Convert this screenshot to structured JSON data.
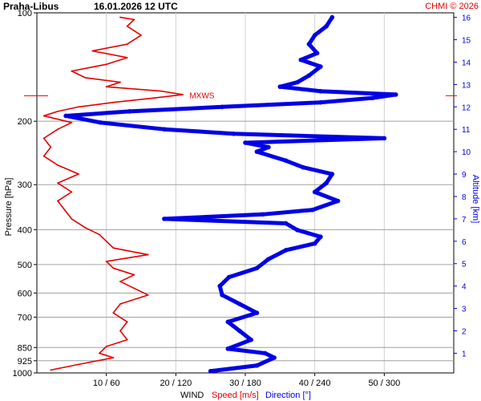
{
  "header": {
    "station": "Praha-Libus",
    "datetime": "16.01.2026 12 UTC",
    "copyright": "CHMI © 2026"
  },
  "colors": {
    "speed": "#e60000",
    "direction": "#0000e6",
    "grid_h": "#a0a0a0",
    "grid_v": "#d0d0d0",
    "tick": "#000000"
  },
  "chart_data": {
    "type": "line",
    "title": "Praha-Libus   16.01.2026 12 UTC",
    "ylabel": "Pressure [hPa]",
    "ylabel_right": "Altitude [km]",
    "xlabel_parts": [
      "WIND",
      "Speed [m/s]",
      "Direction [°]"
    ],
    "pressure_scale": "log",
    "pressure_range": [
      1000,
      100
    ],
    "pressure_ticks": [
      100,
      200,
      300,
      400,
      500,
      600,
      700,
      850,
      925,
      1000
    ],
    "pressure_tick_labels": [
      "100",
      "200",
      "300",
      "400",
      "500",
      "600",
      "700",
      "850",
      "925",
      "1000"
    ],
    "altitude_range_km": [
      0.12,
      16.2
    ],
    "altitude_ticks": [
      1,
      2,
      3,
      4,
      5,
      6,
      7,
      8,
      9,
      10,
      11,
      12,
      13,
      14,
      15,
      16
    ],
    "altitude_tick_labels": [
      "1",
      "2",
      "3",
      "4",
      "5",
      "6",
      "7",
      "8",
      "9",
      "10",
      "11",
      "12",
      "13",
      "14",
      "15",
      "16"
    ],
    "speed_range": [
      0,
      60
    ],
    "direction_range": [
      0,
      360
    ],
    "x_ticks_speed": [
      10,
      20,
      30,
      40,
      50
    ],
    "x_tick_labels": [
      "10 / 60",
      "20 / 120",
      "30 / 180",
      "40 / 240",
      "50 / 300"
    ],
    "grid": true,
    "annotations": [
      {
        "label": "MXWS",
        "altitude_km": 12.5,
        "speed": 21.5
      }
    ],
    "series": [
      {
        "name": "Speed [m/s]",
        "unit": "m/s",
        "points": [
          [
            0.25,
            2
          ],
          [
            0.5,
            6
          ],
          [
            0.8,
            11
          ],
          [
            1.0,
            9
          ],
          [
            1.3,
            10
          ],
          [
            1.6,
            13
          ],
          [
            2.0,
            12
          ],
          [
            2.4,
            13
          ],
          [
            2.8,
            11
          ],
          [
            3.2,
            12
          ],
          [
            3.6,
            16
          ],
          [
            3.9,
            14
          ],
          [
            4.2,
            12
          ],
          [
            4.5,
            14
          ],
          [
            4.8,
            11
          ],
          [
            5.1,
            10
          ],
          [
            5.4,
            16
          ],
          [
            5.7,
            11
          ],
          [
            6.0,
            10
          ],
          [
            6.3,
            9
          ],
          [
            6.6,
            7
          ],
          [
            7.0,
            5
          ],
          [
            7.4,
            4
          ],
          [
            7.8,
            3
          ],
          [
            8.2,
            5
          ],
          [
            8.6,
            3
          ],
          [
            9.0,
            6
          ],
          [
            9.4,
            3
          ],
          [
            9.8,
            1
          ],
          [
            10.2,
            2
          ],
          [
            10.6,
            1
          ],
          [
            11.0,
            3
          ],
          [
            11.3,
            5
          ],
          [
            11.6,
            1
          ],
          [
            11.8,
            3
          ],
          [
            12.0,
            6
          ],
          [
            12.2,
            11
          ],
          [
            12.4,
            17
          ],
          [
            12.55,
            21
          ],
          [
            12.7,
            18
          ],
          [
            12.9,
            10
          ],
          [
            13.1,
            12
          ],
          [
            13.3,
            7
          ],
          [
            13.6,
            5
          ],
          [
            13.9,
            10
          ],
          [
            14.2,
            13
          ],
          [
            14.5,
            8
          ],
          [
            14.8,
            13
          ],
          [
            15.2,
            15
          ],
          [
            15.6,
            13
          ],
          [
            15.9,
            14
          ],
          [
            16.0,
            12
          ]
        ]
      },
      {
        "name": "Direction [°]",
        "unit": "deg",
        "points": [
          [
            0.2,
            150
          ],
          [
            0.45,
            190
          ],
          [
            0.8,
            205
          ],
          [
            1.0,
            197
          ],
          [
            1.2,
            165
          ],
          [
            1.6,
            185
          ],
          [
            2.0,
            175
          ],
          [
            2.4,
            165
          ],
          [
            2.8,
            190
          ],
          [
            3.2,
            175
          ],
          [
            3.6,
            160
          ],
          [
            4.0,
            158
          ],
          [
            4.4,
            166
          ],
          [
            4.8,
            190
          ],
          [
            5.2,
            200
          ],
          [
            5.6,
            215
          ],
          [
            5.9,
            240
          ],
          [
            6.2,
            245
          ],
          [
            6.5,
            225
          ],
          [
            6.8,
            215
          ],
          [
            7.0,
            110
          ],
          [
            7.2,
            195
          ],
          [
            7.4,
            238
          ],
          [
            7.8,
            260
          ],
          [
            8.2,
            240
          ],
          [
            8.6,
            250
          ],
          [
            9.0,
            255
          ],
          [
            9.3,
            230
          ],
          [
            9.6,
            215
          ],
          [
            10.0,
            190
          ],
          [
            10.2,
            200
          ],
          [
            10.4,
            180
          ],
          [
            10.6,
            300
          ],
          [
            10.8,
            170
          ],
          [
            11.0,
            110
          ],
          [
            11.3,
            55
          ],
          [
            11.6,
            25
          ],
          [
            11.8,
            80
          ],
          [
            12.0,
            160
          ],
          [
            12.2,
            245
          ],
          [
            12.4,
            290
          ],
          [
            12.55,
            310
          ],
          [
            12.7,
            245
          ],
          [
            12.9,
            210
          ],
          [
            13.1,
            225
          ],
          [
            13.4,
            235
          ],
          [
            13.8,
            245
          ],
          [
            14.1,
            228
          ],
          [
            14.4,
            242
          ],
          [
            14.8,
            235
          ],
          [
            15.2,
            240
          ],
          [
            15.6,
            250
          ],
          [
            16.0,
            255
          ]
        ]
      }
    ]
  }
}
